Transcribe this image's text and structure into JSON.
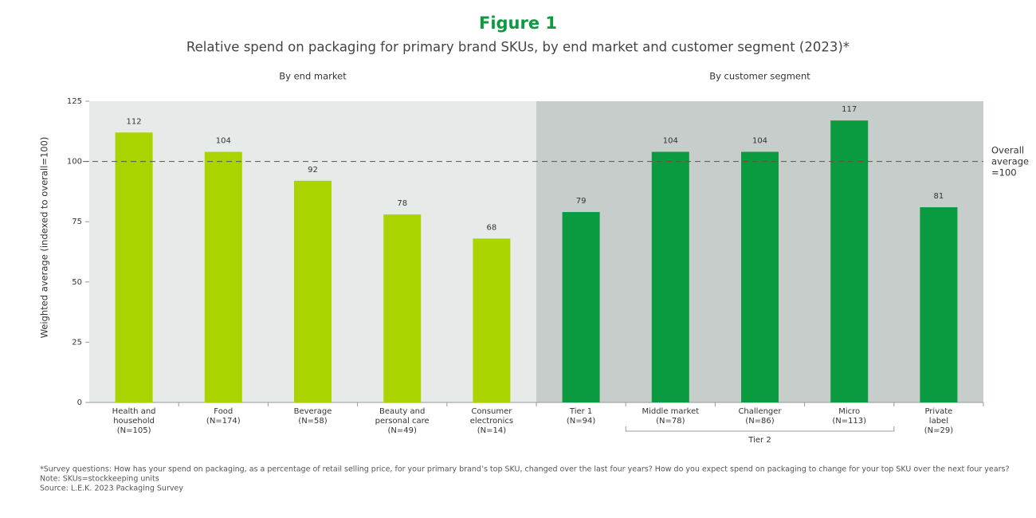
{
  "chart_data": {
    "type": "bar",
    "title": "Figure 1",
    "subtitle": "Relative spend on packaging for primary brand SKUs, by end market and customer segment (2023)*",
    "y_label": "Weighted average (indexed to overall=100)",
    "ylim": [
      0,
      125
    ],
    "yticks": [
      0,
      25,
      50,
      75,
      100,
      125
    ],
    "panels": [
      {
        "label": "By end market",
        "color": "#a9d400",
        "background": "#e6ebe9",
        "categories": [
          [
            "Health and",
            "household",
            "(N=105)"
          ],
          [
            "Food",
            "(N=174)"
          ],
          [
            "Beverage",
            "(N=58)"
          ],
          [
            "Beauty and",
            "personal care",
            "(N=49)"
          ],
          [
            "Consumer",
            "electronics",
            "(N=14)"
          ]
        ],
        "values": [
          112,
          104,
          92,
          78,
          68
        ]
      },
      {
        "label": "By customer segment",
        "color": "#0a9a3f",
        "background": "#c6cdca",
        "categories": [
          [
            "Tier 1",
            "(N=94)"
          ],
          [
            "Middle market",
            "(N=78)"
          ],
          [
            "Challenger",
            "(N=86)"
          ],
          [
            "Micro",
            "(N=113)"
          ],
          [
            "Private",
            "label",
            "(N=29)"
          ]
        ],
        "values": [
          79,
          104,
          104,
          117,
          81
        ]
      }
    ],
    "group_label": "Tier 2",
    "reference": {
      "value": 100,
      "label": [
        "Overall",
        "average",
        "=100"
      ]
    },
    "notes": [
      "*Survey questions: How has your spend on packaging, as a percentage of retail selling price, for your primary brand’s top SKU, changed over the last four years? How do you expect spend on packaging to change for your top SKU over the next four  years?",
      "Note: SKUs=stockkeeping units",
      "Source: L.E.K. 2023 Packaging Survey"
    ]
  }
}
